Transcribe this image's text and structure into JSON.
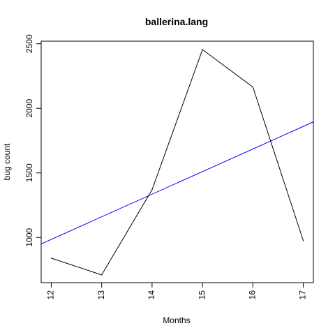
{
  "chart_data": {
    "type": "line",
    "title": "ballerina.lang",
    "xlabel": "Months",
    "ylabel": "bug count",
    "x": [
      12,
      13,
      14,
      15,
      16,
      17
    ],
    "series": [
      {
        "values": [
          840,
          710,
          1370,
          2455,
          2165,
          975
        ],
        "color": "#000000"
      }
    ],
    "trendline": {
      "color": "#0000ff",
      "points": [
        [
          12,
          985
        ],
        [
          17,
          1860
        ]
      ]
    },
    "xlim": [
      11.8,
      17.2
    ],
    "ylim": [
      650,
      2520
    ],
    "xticks": [
      "12",
      "13",
      "14",
      "15",
      "16",
      "17"
    ],
    "yticks": [
      "1000",
      "1500",
      "2000",
      "2500"
    ],
    "grid": false,
    "legend": "none"
  }
}
